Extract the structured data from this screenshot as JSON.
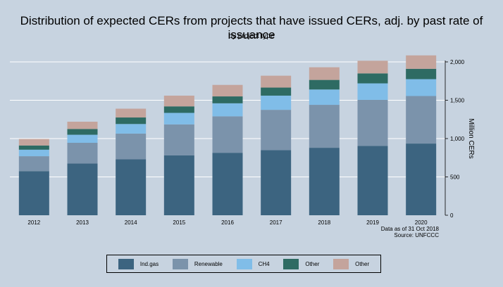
{
  "chart_data": {
    "type": "bar",
    "stacked": true,
    "title": "Distribution of expected CERs from projects that have issued CERs, adj. by past rate of issuance",
    "subtitle": "by project type",
    "ylabel": "Million CERs",
    "ylim": [
      0,
      2000
    ],
    "yticks": [
      "0",
      "500",
      "1,000",
      "1,500",
      "2,000"
    ],
    "ytick_values": [
      0,
      500,
      1000,
      1500,
      2000
    ],
    "y_axis_position": "right",
    "grid": true,
    "categories": [
      "2012",
      "2013",
      "2014",
      "2015",
      "2016",
      "2017",
      "2018",
      "2019",
      "2020"
    ],
    "series": [
      {
        "name": "Ind.gas",
        "color": "#3c6480",
        "values": [
          575,
          675,
          730,
          780,
          815,
          850,
          880,
          905,
          935
        ]
      },
      {
        "name": "Renewable",
        "color": "#7b93ab",
        "values": [
          195,
          270,
          335,
          405,
          475,
          525,
          560,
          600,
          620
        ]
      },
      {
        "name": "CH4",
        "color": "#80bde8",
        "values": [
          85,
          105,
          125,
          150,
          170,
          185,
          200,
          215,
          220
        ]
      },
      {
        "name": "Other",
        "color": "#2e6b63",
        "values": [
          55,
          75,
          85,
          85,
          90,
          105,
          125,
          130,
          135
        ]
      },
      {
        "name": "Other",
        "color": "#c4a49c",
        "values": [
          85,
          95,
          115,
          140,
          150,
          155,
          165,
          165,
          175
        ]
      }
    ],
    "legend_position": "bottom",
    "notes": [
      "Data as of 31 Oct 2018",
      "Source: UNFCCC"
    ]
  }
}
